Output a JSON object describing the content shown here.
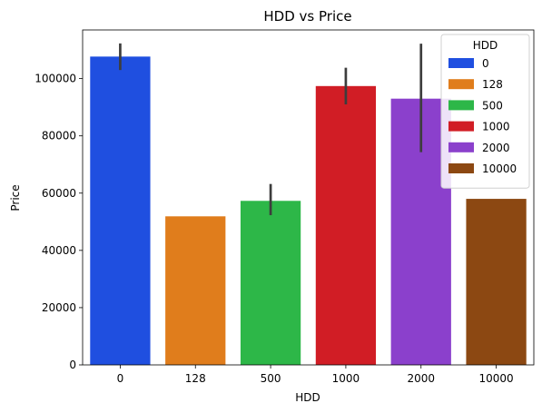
{
  "chart_data": {
    "type": "bar",
    "title": "HDD vs Price",
    "xlabel": "HDD",
    "ylabel": "Price",
    "categories": [
      "0",
      "128",
      "500",
      "1000",
      "2000",
      "10000"
    ],
    "values": [
      107700,
      51900,
      57300,
      97400,
      93000,
      58000
    ],
    "error_bars": [
      {
        "low": 103000,
        "high": 112300
      },
      null,
      {
        "low": 52300,
        "high": 63200
      },
      {
        "low": 91000,
        "high": 103800
      },
      {
        "low": 74300,
        "high": 112200
      },
      null
    ],
    "colors": [
      "#1f4fe0",
      "#e07d1c",
      "#2db748",
      "#d11d25",
      "#8b40cc",
      "#8c4812"
    ],
    "ylim": [
      0,
      117000
    ],
    "yticks": [
      0,
      20000,
      40000,
      60000,
      80000,
      100000
    ],
    "ytick_labels": [
      "0",
      "20000",
      "40000",
      "60000",
      "80000",
      "100000"
    ],
    "legend": {
      "title": "HDD",
      "placement": "top-right",
      "entries": [
        "0",
        "128",
        "500",
        "1000",
        "2000",
        "10000"
      ]
    },
    "grid": false
  }
}
